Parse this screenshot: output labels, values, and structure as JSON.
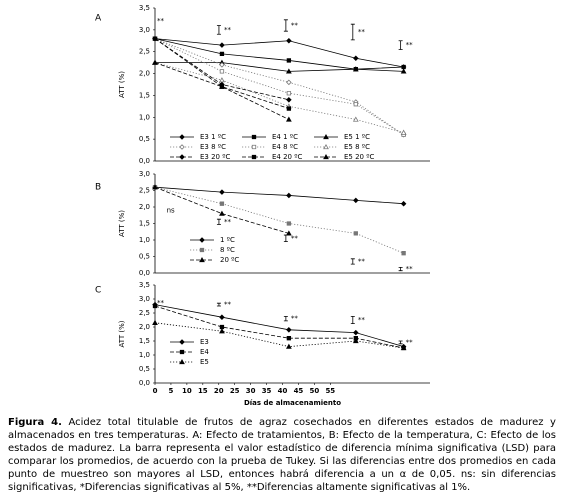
{
  "chart_data": [
    {
      "type": "line",
      "panel": "A",
      "ylabel": "ATT (%)",
      "x": [
        0,
        21,
        42,
        63,
        78
      ],
      "xlim": [
        0,
        80
      ],
      "ylim": [
        0,
        3.5
      ],
      "yticks": [
        {
          "value": 0,
          "label": "0,0"
        },
        {
          "value": 0.5,
          "label": "0,5"
        },
        {
          "value": 1,
          "label": "1,0"
        },
        {
          "value": 1.5,
          "label": "1,5"
        },
        {
          "value": 2,
          "label": "2,0"
        },
        {
          "value": 2.5,
          "label": "2,5"
        },
        {
          "value": 3,
          "label": "3,0"
        },
        {
          "value": 3.5,
          "label": "3,5"
        }
      ],
      "legend": "lower-left",
      "legend_columns": 3,
      "series": [
        {
          "name": "E3 1 ºC",
          "color": "#000000",
          "line": "solid",
          "marker": "diamond",
          "filled": true,
          "values": [
            2.8,
            2.65,
            2.75,
            2.35,
            2.15
          ]
        },
        {
          "name": "E4 1 ºC",
          "color": "#000000",
          "line": "solid",
          "marker": "square",
          "filled": true,
          "values": [
            2.8,
            2.45,
            2.3,
            2.1,
            2.15
          ]
        },
        {
          "name": "E5 1 ºC",
          "color": "#000000",
          "line": "solid",
          "marker": "triangle",
          "filled": true,
          "values": [
            2.25,
            2.25,
            2.05,
            2.1,
            2.05
          ]
        },
        {
          "name": "E3 8 ºC",
          "color": "#777777",
          "line": "dotted",
          "marker": "diamond",
          "filled": false,
          "values": [
            2.8,
            2.2,
            1.8,
            1.35,
            0.6
          ]
        },
        {
          "name": "E4 8 ºC",
          "color": "#777777",
          "line": "dotted",
          "marker": "square",
          "filled": false,
          "values": [
            2.8,
            2.05,
            1.55,
            1.3,
            0.6
          ]
        },
        {
          "name": "E5 8 ºC",
          "color": "#777777",
          "line": "dotted",
          "marker": "triangle",
          "filled": false,
          "values": [
            2.25,
            1.85,
            1.25,
            0.95,
            0.65
          ]
        },
        {
          "name": "E3 20 ºC",
          "color": "#000000",
          "line": "dashed",
          "marker": "diamond",
          "filled": true,
          "values": [
            2.8,
            1.75,
            1.4,
            null,
            null
          ]
        },
        {
          "name": "E4 20 ºC",
          "color": "#000000",
          "line": "dashed",
          "marker": "square",
          "filled": true,
          "values": [
            2.8,
            1.7,
            1.2,
            null,
            null
          ]
        },
        {
          "name": "E5 20 ºC",
          "color": "#000000",
          "line": "dashed",
          "marker": "triangle",
          "filled": true,
          "values": [
            2.25,
            1.7,
            0.95,
            null,
            null
          ]
        }
      ],
      "errorbars": {
        "x": [
          21,
          42,
          63,
          78
        ],
        "y": [
          3.0,
          3.1,
          2.95,
          2.65
        ],
        "err": [
          0.1,
          0.13,
          0.18,
          0.1
        ]
      },
      "annotations": [
        {
          "text": "**",
          "x": 0,
          "y": 3.2
        },
        {
          "text": "**",
          "x": 21,
          "y": 3.0
        },
        {
          "text": "**",
          "x": 42,
          "y": 3.1
        },
        {
          "text": "**",
          "x": 63,
          "y": 2.95
        },
        {
          "text": "**",
          "x": 78,
          "y": 2.65
        }
      ]
    },
    {
      "type": "line",
      "panel": "B",
      "ylabel": "ATT (%)",
      "x": [
        0,
        21,
        42,
        63,
        78
      ],
      "xlim": [
        0,
        80
      ],
      "ylim": [
        0,
        3
      ],
      "yticks": [
        {
          "value": 0,
          "label": "0,0"
        },
        {
          "value": 0.5,
          "label": "0,5"
        },
        {
          "value": 1,
          "label": "1,0"
        },
        {
          "value": 1.5,
          "label": "1,5"
        },
        {
          "value": 2,
          "label": "2,0"
        },
        {
          "value": 2.5,
          "label": "2,5"
        },
        {
          "value": 3,
          "label": "3,0"
        }
      ],
      "legend": "lower-left",
      "legend_columns": 1,
      "series": [
        {
          "name": "1 ºC",
          "color": "#000000",
          "line": "solid",
          "marker": "diamond",
          "filled": true,
          "values": [
            2.6,
            2.45,
            2.35,
            2.2,
            2.1
          ]
        },
        {
          "name": "8 ºC",
          "color": "#777777",
          "line": "dotted",
          "marker": "square",
          "filled": true,
          "values": [
            2.6,
            2.1,
            1.5,
            1.2,
            0.6
          ]
        },
        {
          "name": "20 ºC",
          "color": "#000000",
          "line": "dashed",
          "marker": "triangle",
          "filled": true,
          "values": [
            2.6,
            1.8,
            1.2,
            null,
            null
          ]
        }
      ],
      "errorbars": {
        "x": [
          21,
          42,
          63,
          78
        ],
        "y": [
          1.55,
          1.05,
          0.35,
          0.12
        ],
        "err": [
          0.08,
          0.1,
          0.08,
          0.05
        ]
      },
      "annotations": [
        {
          "text": "ns",
          "x": 3,
          "y": 1.9
        },
        {
          "text": "**",
          "x": 21,
          "y": 1.55
        },
        {
          "text": "**",
          "x": 42,
          "y": 1.05
        },
        {
          "text": "**",
          "x": 63,
          "y": 0.35
        },
        {
          "text": "**",
          "x": 78,
          "y": 0.12
        }
      ]
    },
    {
      "type": "line",
      "panel": "C",
      "ylabel": "ATT (%)",
      "xlabel": "Días de almacenamiento",
      "x": [
        0,
        21,
        42,
        63,
        78
      ],
      "xlim": [
        0,
        80
      ],
      "xticks": [
        0,
        5,
        10,
        15,
        20,
        25,
        30,
        35,
        40,
        45,
        50,
        55
      ],
      "ylim": [
        0,
        3.5
      ],
      "yticks": [
        {
          "value": 0,
          "label": "0,0"
        },
        {
          "value": 0.5,
          "label": "0,5"
        },
        {
          "value": 1,
          "label": "1,0"
        },
        {
          "value": 1.5,
          "label": "1,5"
        },
        {
          "value": 2,
          "label": "2,0"
        },
        {
          "value": 2.5,
          "label": "2,5"
        },
        {
          "value": 3,
          "label": "3,0"
        },
        {
          "value": 3.5,
          "label": "3,5"
        }
      ],
      "legend": "lower-left",
      "legend_columns": 1,
      "series": [
        {
          "name": "E3",
          "color": "#000000",
          "line": "solid",
          "marker": "diamond",
          "filled": true,
          "values": [
            2.8,
            2.35,
            1.9,
            1.8,
            1.3
          ]
        },
        {
          "name": "E4",
          "color": "#000000",
          "line": "dashed",
          "marker": "square",
          "filled": true,
          "values": [
            2.75,
            2.0,
            1.6,
            1.6,
            1.25
          ]
        },
        {
          "name": "E5",
          "color": "#000000",
          "line": "dotted",
          "marker": "triangle",
          "filled": true,
          "values": [
            2.15,
            1.85,
            1.3,
            1.5,
            1.25
          ]
        }
      ],
      "errorbars": {
        "x": [
          21,
          42,
          63,
          78
        ],
        "y": [
          2.8,
          2.3,
          2.25,
          1.45
        ],
        "err": [
          0.05,
          0.08,
          0.13,
          0.05
        ]
      },
      "annotations": [
        {
          "text": "**",
          "x": 0,
          "y": 2.85
        },
        {
          "text": "**",
          "x": 21,
          "y": 2.8
        },
        {
          "text": "**",
          "x": 42,
          "y": 2.3
        },
        {
          "text": "**",
          "x": 63,
          "y": 2.25
        },
        {
          "text": "**",
          "x": 78,
          "y": 1.45
        }
      ]
    }
  ],
  "caption": {
    "label": "Figura 4.",
    "text": "Acidez total titulable de frutos de agraz cosechados en diferentes estados de madurez y almacenados en tres temperaturas. A: Efecto de tratamientos, B: Efecto de la temperatura, C: Efecto de los estados de madurez. La barra representa el valor estadístico de diferencia mínima significativa (LSD) para comparar los promedios, de acuerdo con la prueba de Tukey. Si las diferencias entre dos promedios en cada punto de muestreo son mayores al LSD, entonces habrá diferencia a un α de 0,05. ns: sin diferencias significativas, *Diferencias significativas al 5%, **Diferencias altamente significativas al 1%."
  }
}
